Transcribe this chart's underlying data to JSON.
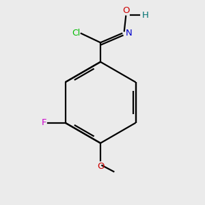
{
  "background_color": "#ebebeb",
  "bond_color": "#000000",
  "atom_colors": {
    "Cl": "#00bb00",
    "N": "#0000cc",
    "O_hydroxyl": "#cc0000",
    "H": "#007070",
    "F": "#cc00cc",
    "O_methoxy": "#cc0000",
    "C": "#000000"
  },
  "figsize": [
    3.0,
    3.0
  ],
  "dpi": 100
}
